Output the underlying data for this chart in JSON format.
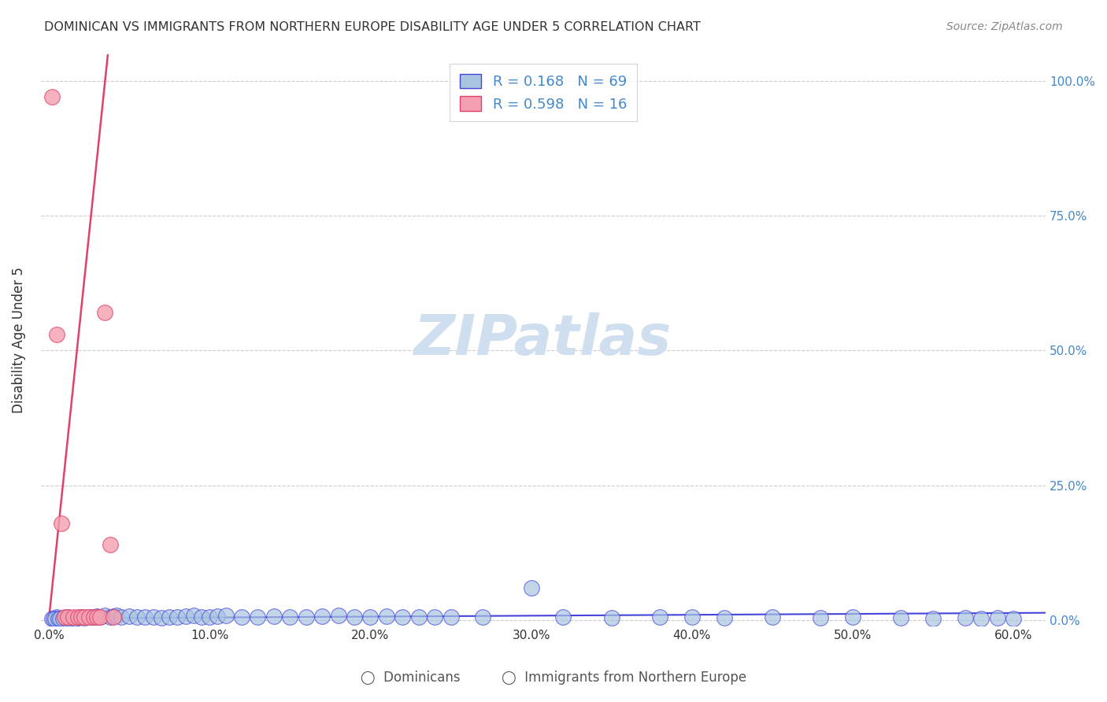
{
  "title": "DOMINICAN VS IMMIGRANTS FROM NORTHERN EUROPE DISABILITY AGE UNDER 5 CORRELATION CHART",
  "source": "Source: ZipAtlas.com",
  "xlabel_ticks": [
    "0.0%",
    "10.0%",
    "20.0%",
    "30.0%",
    "40.0%",
    "50.0%",
    "60.0%"
  ],
  "xlabel_values": [
    0.0,
    0.1,
    0.2,
    0.3,
    0.4,
    0.5,
    0.6
  ],
  "ylabel": "Disability Age Under 5",
  "ylabel_ticks": [
    "0.0%",
    "25.0%",
    "50.0%",
    "75.0%",
    "100.0%"
  ],
  "ylabel_values": [
    0.0,
    0.25,
    0.5,
    0.75,
    1.0
  ],
  "xlim": [
    -0.005,
    0.62
  ],
  "ylim": [
    -0.01,
    1.05
  ],
  "legend_label1": "Dominicans",
  "legend_label2": "Immigrants from Northern Europe",
  "r1": 0.168,
  "n1": 69,
  "r2": 0.598,
  "n2": 16,
  "color_blue": "#a8c4e0",
  "color_pink": "#f4a0b0",
  "trendline_blue": "#4444dd",
  "trendline_pink": "#e0406a",
  "trendline_dashed": "#b0b0b0",
  "blue_points_x": [
    0.005,
    0.008,
    0.01,
    0.012,
    0.015,
    0.018,
    0.02,
    0.022,
    0.025,
    0.028,
    0.03,
    0.032,
    0.035,
    0.038,
    0.04,
    0.042,
    0.045,
    0.05,
    0.055,
    0.06,
    0.065,
    0.07,
    0.075,
    0.08,
    0.085,
    0.09,
    0.095,
    0.1,
    0.105,
    0.11,
    0.12,
    0.13,
    0.14,
    0.15,
    0.16,
    0.17,
    0.18,
    0.19,
    0.2,
    0.21,
    0.22,
    0.23,
    0.24,
    0.25,
    0.27,
    0.3,
    0.32,
    0.35,
    0.38,
    0.4,
    0.42,
    0.45,
    0.48,
    0.5,
    0.53,
    0.55,
    0.57,
    0.58,
    0.59,
    0.6,
    0.002,
    0.003,
    0.004,
    0.006,
    0.007,
    0.009,
    0.011,
    0.013,
    0.016
  ],
  "blue_points_y": [
    0.005,
    0.003,
    0.004,
    0.005,
    0.003,
    0.004,
    0.005,
    0.004,
    0.006,
    0.005,
    0.007,
    0.005,
    0.008,
    0.006,
    0.007,
    0.008,
    0.005,
    0.007,
    0.006,
    0.005,
    0.005,
    0.004,
    0.006,
    0.005,
    0.007,
    0.008,
    0.005,
    0.006,
    0.007,
    0.008,
    0.005,
    0.006,
    0.007,
    0.005,
    0.006,
    0.007,
    0.008,
    0.005,
    0.006,
    0.007,
    0.005,
    0.005,
    0.006,
    0.005,
    0.006,
    0.06,
    0.005,
    0.004,
    0.005,
    0.005,
    0.004,
    0.005,
    0.004,
    0.005,
    0.004,
    0.003,
    0.004,
    0.003,
    0.004,
    0.003,
    0.003,
    0.003,
    0.003,
    0.003,
    0.003,
    0.003,
    0.003,
    0.003,
    0.003
  ],
  "pink_points_x": [
    0.002,
    0.005,
    0.008,
    0.01,
    0.012,
    0.015,
    0.018,
    0.02,
    0.022,
    0.025,
    0.028,
    0.03,
    0.032,
    0.035,
    0.038,
    0.04
  ],
  "pink_points_y": [
    0.97,
    0.53,
    0.18,
    0.005,
    0.005,
    0.005,
    0.005,
    0.005,
    0.005,
    0.005,
    0.005,
    0.005,
    0.005,
    0.57,
    0.14,
    0.005
  ],
  "watermark": "ZIPatlas",
  "watermark_color": "#d0dff0"
}
